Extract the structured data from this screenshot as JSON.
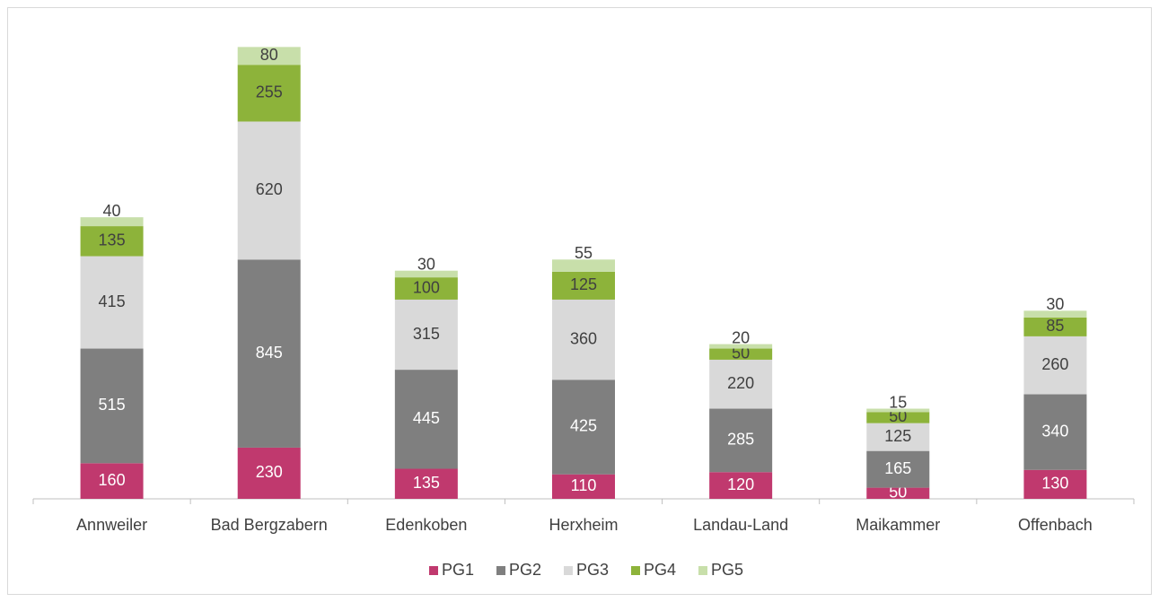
{
  "chart_data": {
    "type": "stacked_bar",
    "categories": [
      "Annweiler",
      "Bad Bergzabern",
      "Edenkoben",
      "Herxheim",
      "Landau-Land",
      "Maikammer",
      "Offenbach"
    ],
    "series": [
      {
        "name": "PG1",
        "color": "#c0396e",
        "values": [
          160,
          230,
          135,
          110,
          120,
          50,
          130
        ]
      },
      {
        "name": "PG2",
        "color": "#7f7f7f",
        "values": [
          515,
          845,
          445,
          425,
          285,
          165,
          340
        ]
      },
      {
        "name": "PG3",
        "color": "#d9d9d9",
        "values": [
          415,
          620,
          315,
          360,
          220,
          125,
          260
        ]
      },
      {
        "name": "PG4",
        "color": "#8db33a",
        "values": [
          135,
          255,
          100,
          125,
          50,
          50,
          85
        ]
      },
      {
        "name": "PG5",
        "color": "#c8dfaa",
        "values": [
          40,
          80,
          30,
          55,
          20,
          15,
          30
        ]
      }
    ],
    "ylim": [
      0,
      2100
    ],
    "legend": "bottom"
  }
}
